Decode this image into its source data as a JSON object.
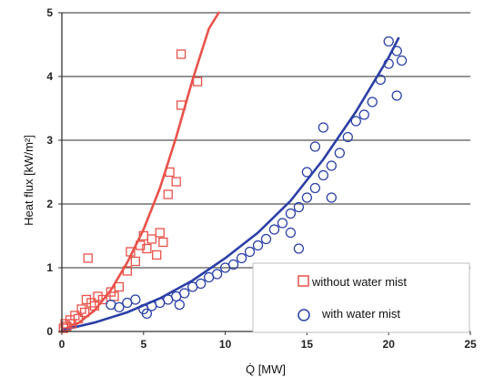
{
  "chart_data": {
    "type": "scatter",
    "xlabel": "Q̇ [MW]",
    "ylabel": "Heat flux [kW/m²]",
    "xlim": [
      0,
      25
    ],
    "ylim": [
      0,
      5
    ],
    "x_ticks": [
      "0",
      "5",
      "10",
      "15",
      "20",
      "25"
    ],
    "y_ticks": [
      "0",
      "1",
      "2",
      "3",
      "4",
      "5"
    ],
    "grid": "horizontal",
    "legend_position": "bottom-right",
    "series": [
      {
        "name": "without water mist",
        "marker": "square",
        "color": "#e8524a",
        "points": [
          [
            0.1,
            0.05
          ],
          [
            0.2,
            0.12
          ],
          [
            0.3,
            0.08
          ],
          [
            0.5,
            0.18
          ],
          [
            0.6,
            0.12
          ],
          [
            0.8,
            0.25
          ],
          [
            1.0,
            0.2
          ],
          [
            1.2,
            0.35
          ],
          [
            1.4,
            0.3
          ],
          [
            1.5,
            0.5
          ],
          [
            1.6,
            1.15
          ],
          [
            1.8,
            0.45
          ],
          [
            2.0,
            0.4
          ],
          [
            2.2,
            0.55
          ],
          [
            2.5,
            0.5
          ],
          [
            3.0,
            0.62
          ],
          [
            3.2,
            0.55
          ],
          [
            3.5,
            0.7
          ],
          [
            4.0,
            0.95
          ],
          [
            4.2,
            1.25
          ],
          [
            4.5,
            1.1
          ],
          [
            4.8,
            1.35
          ],
          [
            5.0,
            1.5
          ],
          [
            5.2,
            1.3
          ],
          [
            5.5,
            1.45
          ],
          [
            5.8,
            1.2
          ],
          [
            6.0,
            1.55
          ],
          [
            6.2,
            1.4
          ],
          [
            6.5,
            2.15
          ],
          [
            6.6,
            2.5
          ],
          [
            7.0,
            2.35
          ],
          [
            7.3,
            3.55
          ],
          [
            7.3,
            4.35
          ],
          [
            8.3,
            3.92
          ]
        ],
        "fit": [
          [
            0,
            0.02
          ],
          [
            1,
            0.13
          ],
          [
            2,
            0.33
          ],
          [
            3,
            0.65
          ],
          [
            4,
            1.08
          ],
          [
            5,
            1.6
          ],
          [
            6,
            2.25
          ],
          [
            7,
            3.05
          ],
          [
            8,
            3.95
          ],
          [
            9,
            4.75
          ],
          [
            9.6,
            5.0
          ]
        ]
      },
      {
        "name": "with water mist",
        "marker": "circle",
        "color": "#2b3fa6",
        "points": [
          [
            3.0,
            0.42
          ],
          [
            3.5,
            0.38
          ],
          [
            4.0,
            0.45
          ],
          [
            4.5,
            0.5
          ],
          [
            5.0,
            0.35
          ],
          [
            5.2,
            0.28
          ],
          [
            5.5,
            0.4
          ],
          [
            6.0,
            0.45
          ],
          [
            6.5,
            0.5
          ],
          [
            7.0,
            0.55
          ],
          [
            7.2,
            0.42
          ],
          [
            7.5,
            0.6
          ],
          [
            8.0,
            0.7
          ],
          [
            8.5,
            0.75
          ],
          [
            9.0,
            0.85
          ],
          [
            9.5,
            0.9
          ],
          [
            10.0,
            1.0
          ],
          [
            10.5,
            1.05
          ],
          [
            11.0,
            1.15
          ],
          [
            11.5,
            1.25
          ],
          [
            12.0,
            1.35
          ],
          [
            12.5,
            1.45
          ],
          [
            13.0,
            1.6
          ],
          [
            13.5,
            1.7
          ],
          [
            14.0,
            1.85
          ],
          [
            14.0,
            1.55
          ],
          [
            14.5,
            1.95
          ],
          [
            14.5,
            1.3
          ],
          [
            15.0,
            2.1
          ],
          [
            15.0,
            2.5
          ],
          [
            15.5,
            2.25
          ],
          [
            15.5,
            2.9
          ],
          [
            16.0,
            2.45
          ],
          [
            16.0,
            3.2
          ],
          [
            16.5,
            2.6
          ],
          [
            16.5,
            2.1
          ],
          [
            17.0,
            2.8
          ],
          [
            17.5,
            3.05
          ],
          [
            18.0,
            3.3
          ],
          [
            18.5,
            3.4
          ],
          [
            19.0,
            3.6
          ],
          [
            19.5,
            3.95
          ],
          [
            20.0,
            4.2
          ],
          [
            20.0,
            4.55
          ],
          [
            20.5,
            4.4
          ],
          [
            20.5,
            3.7
          ],
          [
            20.8,
            4.25
          ]
        ],
        "fit": [
          [
            0,
            0.02
          ],
          [
            2,
            0.14
          ],
          [
            4,
            0.3
          ],
          [
            6,
            0.52
          ],
          [
            8,
            0.8
          ],
          [
            10,
            1.15
          ],
          [
            12,
            1.55
          ],
          [
            14,
            2.05
          ],
          [
            16,
            2.7
          ],
          [
            18,
            3.45
          ],
          [
            20,
            4.3
          ],
          [
            20.6,
            4.6
          ]
        ]
      }
    ]
  }
}
